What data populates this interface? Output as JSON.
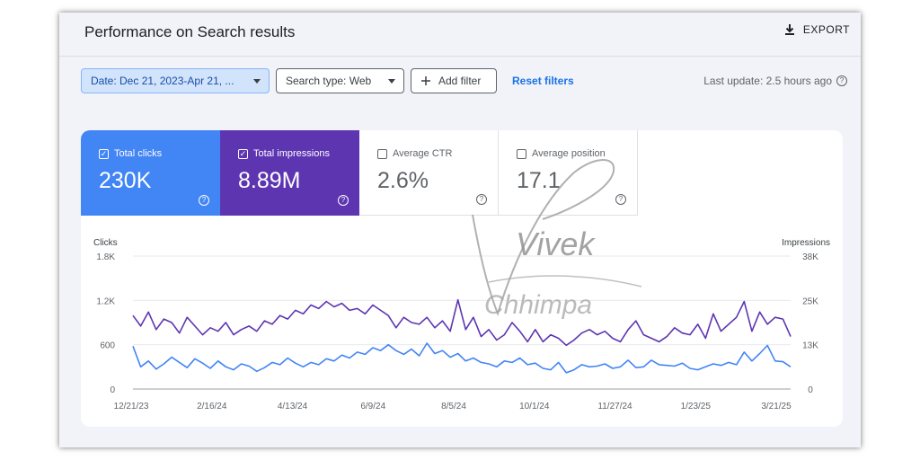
{
  "header": {
    "title": "Performance on Search results",
    "export_label": "EXPORT"
  },
  "filters": {
    "date_label": "Date: Dec 21, 2023-Apr 21, ...",
    "search_type_label": "Search type: Web",
    "add_filter_label": "Add filter",
    "reset_label": "Reset filters",
    "last_update": "Last update: 2.5 hours ago"
  },
  "metrics": [
    {
      "label": "Total clicks",
      "value": "230K",
      "checked": true,
      "color": "#4285f4"
    },
    {
      "label": "Total impressions",
      "value": "8.89M",
      "checked": true,
      "color": "#5e35b1"
    },
    {
      "label": "Average CTR",
      "value": "2.6%",
      "checked": false
    },
    {
      "label": "Average position",
      "value": "17.1",
      "checked": false
    }
  ],
  "icons": {
    "export": "download-icon",
    "help": "help-circle-icon",
    "add": "plus-icon",
    "dropdown": "caret-down-icon",
    "checkbox": "checkbox-icon"
  },
  "watermark": {
    "line1": "Vivek",
    "line2": "Chhimpa"
  },
  "chart_data": {
    "type": "line",
    "left_axis_label": "Clicks",
    "right_axis_label": "Impressions",
    "left_ticks": [
      "0",
      "600",
      "1.2K",
      "1.8K"
    ],
    "right_ticks": [
      "0",
      "13K",
      "25K",
      "38K"
    ],
    "ylim_left": [
      0,
      1800
    ],
    "ylim_right": [
      0,
      38000
    ],
    "x_ticks": [
      "12/21/23",
      "2/16/24",
      "4/13/24",
      "6/9/24",
      "8/5/24",
      "10/1/24",
      "11/27/24",
      "1/23/25",
      "3/21/25"
    ],
    "grid": true,
    "series": [
      {
        "name": "Total clicks",
        "axis": "left",
        "color": "#4285f4",
        "values": [
          580,
          300,
          380,
          270,
          340,
          430,
          360,
          290,
          410,
          350,
          280,
          380,
          300,
          260,
          340,
          310,
          240,
          290,
          360,
          330,
          420,
          350,
          300,
          360,
          330,
          410,
          380,
          460,
          420,
          500,
          470,
          560,
          520,
          600,
          520,
          470,
          540,
          450,
          620,
          480,
          520,
          430,
          480,
          380,
          420,
          360,
          340,
          300,
          380,
          360,
          420,
          330,
          350,
          280,
          260,
          360,
          220,
          260,
          330,
          300,
          310,
          340,
          280,
          300,
          390,
          290,
          300,
          390,
          330,
          320,
          310,
          350,
          280,
          260,
          300,
          340,
          320,
          360,
          330,
          500,
          380,
          480,
          590,
          380,
          370,
          300
        ]
      },
      {
        "name": "Total impressions",
        "axis": "right",
        "color": "#5e35b1",
        "values": [
          21000,
          18000,
          22000,
          17000,
          20000,
          19000,
          16000,
          20500,
          18000,
          15500,
          17500,
          16500,
          19000,
          15500,
          17000,
          18000,
          16500,
          19500,
          18500,
          21000,
          20000,
          22500,
          21500,
          24000,
          23000,
          25000,
          23500,
          24500,
          22500,
          23000,
          21500,
          24000,
          22500,
          21000,
          17500,
          20500,
          19000,
          18500,
          20500,
          17500,
          19500,
          16500,
          25500,
          17000,
          20500,
          15000,
          17000,
          14000,
          15500,
          19000,
          16500,
          13500,
          17000,
          13500,
          15500,
          14500,
          12500,
          14000,
          16000,
          17000,
          15500,
          16500,
          14500,
          13500,
          17000,
          19500,
          15500,
          14500,
          13500,
          15000,
          17500,
          16000,
          15500,
          18500,
          14500,
          21500,
          16500,
          18500,
          20500,
          25000,
          16500,
          22000,
          18500,
          20500,
          20000,
          15000
        ]
      }
    ]
  }
}
